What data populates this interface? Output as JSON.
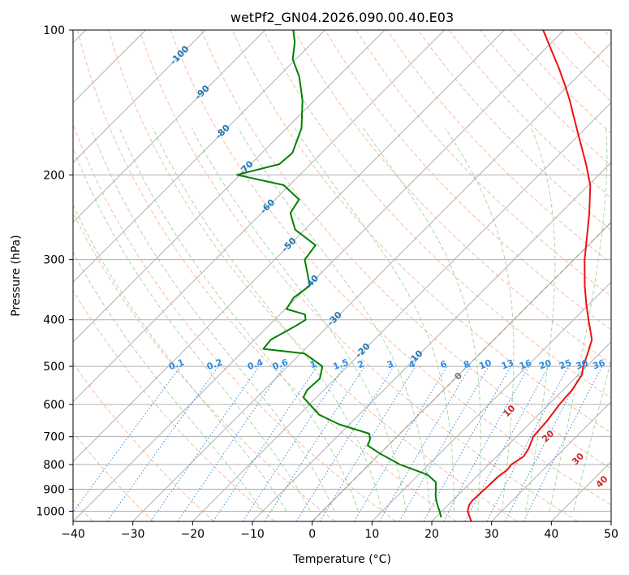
{
  "chart_data": {
    "type": "line",
    "subtype": "skew-T log-P diagram",
    "title": "wetPf2_GN04.2026.090.00.40.E03",
    "xlabel": "Temperature (°C)",
    "ylabel": "Pressure (hPa)",
    "xlim": [
      -40,
      50
    ],
    "ylim": [
      1050,
      100
    ],
    "y_scale": "log",
    "x_ticks": [
      "−40",
      "−30",
      "−20",
      "−10",
      "0",
      "10",
      "20",
      "30",
      "40",
      "50"
    ],
    "y_ticks": [
      "100",
      "200",
      "300",
      "400",
      "500",
      "600",
      "700",
      "800",
      "900",
      "1000"
    ],
    "grid": true,
    "series": [
      {
        "role": "temperature",
        "color": "#ee1111",
        "points": [
          [
            1050,
            26.6
          ],
          [
            1000,
            24.3
          ],
          [
            970,
            23.5
          ],
          [
            950,
            23.3
          ],
          [
            900,
            23.5
          ],
          [
            850,
            23.6
          ],
          [
            820,
            24.0
          ],
          [
            800,
            23.8
          ],
          [
            770,
            24.5
          ],
          [
            740,
            24.0
          ],
          [
            700,
            22.8
          ],
          [
            650,
            22.5
          ],
          [
            600,
            21.8
          ],
          [
            560,
            21.5
          ],
          [
            520,
            20.6
          ],
          [
            500,
            19.4
          ],
          [
            470,
            18.0
          ],
          [
            440,
            16.4
          ],
          [
            400,
            12.5
          ],
          [
            370,
            9.4
          ],
          [
            340,
            6.2
          ],
          [
            300,
            1.8
          ],
          [
            270,
            -1.5
          ],
          [
            240,
            -5.2
          ],
          [
            210,
            -9.7
          ],
          [
            190,
            -13.9
          ],
          [
            170,
            -18.8
          ],
          [
            150,
            -24.3
          ],
          [
            140,
            -27.3
          ],
          [
            130,
            -30.7
          ],
          [
            120,
            -34.5
          ],
          [
            110,
            -38.8
          ],
          [
            100,
            -43.5
          ]
        ]
      },
      {
        "role": "dewpoint",
        "color": "#008000",
        "points": [
          [
            1030,
            20.9
          ],
          [
            1000,
            19.6
          ],
          [
            960,
            17.7
          ],
          [
            930,
            16.4
          ],
          [
            900,
            15.3
          ],
          [
            870,
            14.1
          ],
          [
            840,
            11.5
          ],
          [
            800,
            5.2
          ],
          [
            760,
            0.1
          ],
          [
            730,
            -3.4
          ],
          [
            710,
            -4.0
          ],
          [
            690,
            -5.1
          ],
          [
            660,
            -11.7
          ],
          [
            630,
            -16.7
          ],
          [
            580,
            -22.2
          ],
          [
            560,
            -22.8
          ],
          [
            530,
            -22.6
          ],
          [
            500,
            -24.2
          ],
          [
            470,
            -29.4
          ],
          [
            460,
            -37.0
          ],
          [
            440,
            -37.3
          ],
          [
            410,
            -35.3
          ],
          [
            400,
            -34.8
          ],
          [
            390,
            -35.8
          ],
          [
            380,
            -39.8
          ],
          [
            360,
            -40.5
          ],
          [
            340,
            -39.8
          ],
          [
            320,
            -42.3
          ],
          [
            300,
            -45.0
          ],
          [
            280,
            -45.6
          ],
          [
            260,
            -51.6
          ],
          [
            240,
            -55.2
          ],
          [
            225,
            -56.0
          ],
          [
            210,
            -61.0
          ],
          [
            200,
            -70.5
          ],
          [
            190,
            -65.2
          ],
          [
            180,
            -64.9
          ],
          [
            160,
            -67.5
          ],
          [
            140,
            -72.0
          ],
          [
            125,
            -76.5
          ],
          [
            115,
            -80.5
          ],
          [
            106,
            -83.0
          ],
          [
            100,
            -85.3
          ]
        ]
      }
    ],
    "reference_lines": {
      "dry_adiabats": {
        "color": "#f4a582",
        "style": "dashed"
      },
      "moist_adiabats": {
        "color": "#8fc98f",
        "style": "dashed"
      },
      "mixing_ratio": {
        "color": "#3b8ee0",
        "style": "dotted"
      },
      "freezing_line": {
        "color": "#c8ad86",
        "style": "dashed"
      }
    },
    "isotherm_labels": [
      "-100",
      "-90",
      "-80",
      "-70",
      "-60",
      "-50",
      "-40",
      "-30",
      "-20",
      "-10"
    ],
    "mixing_ratio_labels": [
      "0.1",
      "0.2",
      "0.4",
      "0.6",
      "1",
      "1.5",
      "2",
      "3",
      "4",
      "6",
      "8",
      "10",
      "13",
      "16",
      "20",
      "25",
      "30",
      "36"
    ],
    "wet_bulb_labels": [
      {
        "text": "0",
        "color": "#777777"
      },
      {
        "text": "10",
        "color": "#d62728"
      },
      {
        "text": "20",
        "color": "#d62728"
      },
      {
        "text": "30",
        "color": "#d62728"
      },
      {
        "text": "40",
        "color": "#d62728"
      }
    ],
    "isotherm_label_color": "#1f77b4",
    "mixing_label_color": "#2a8ee8"
  }
}
